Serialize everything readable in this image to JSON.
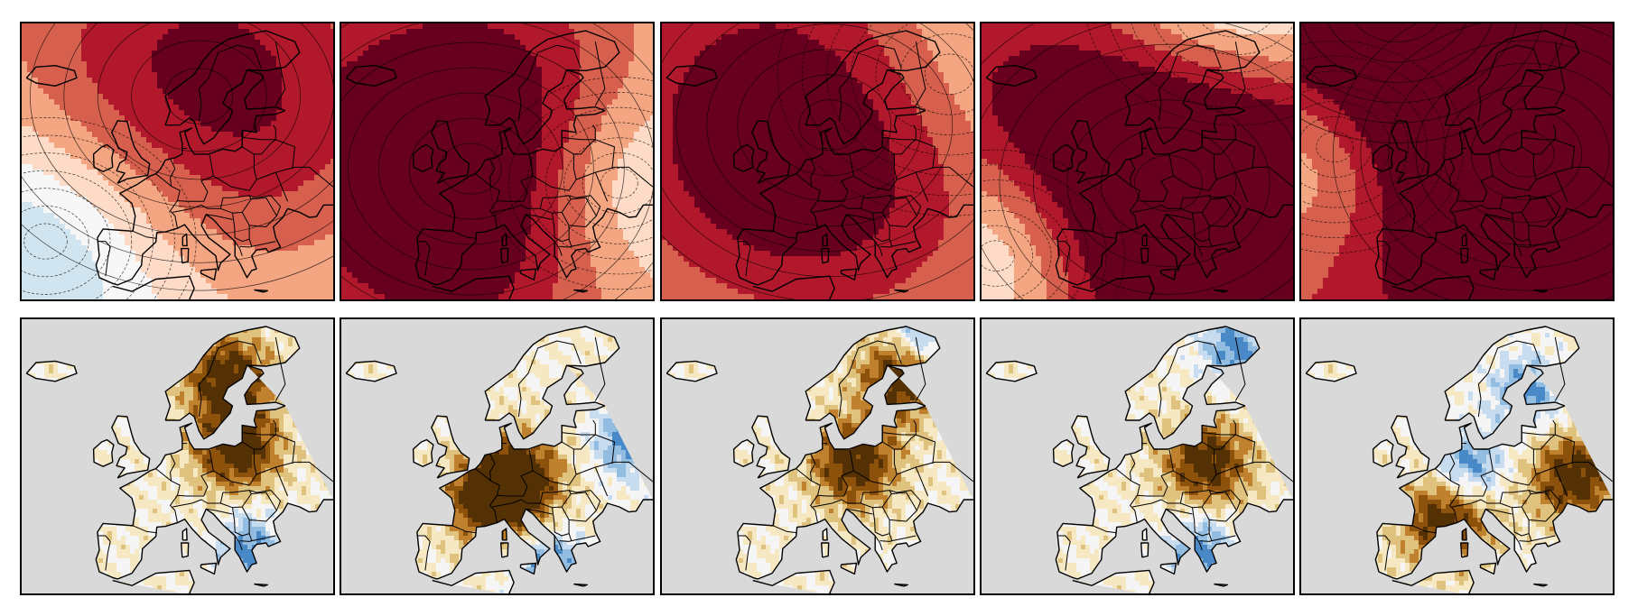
{
  "figure": {
    "rows": [
      {
        "row_id": "anomaly-contours",
        "style": "diverging",
        "panels": [
          {
            "index": 1,
            "centers": [
              {
                "lon": 12,
                "lat": 62,
                "amp": 0.75,
                "r": 0.55
              }
            ],
            "bias": -0.05,
            "neg_centers": [
              {
                "lon": -20,
                "lat": 42,
                "amp": -0.5,
                "r": 0.35
              }
            ]
          },
          {
            "index": 2,
            "centers": [
              {
                "lon": 2,
                "lat": 52,
                "amp": 1.0,
                "r": 0.5
              }
            ],
            "bias": 0.05,
            "neg_centers": [
              {
                "lon": 33,
                "lat": 50,
                "amp": -0.55,
                "r": 0.3
              }
            ]
          },
          {
            "index": 3,
            "centers": [
              {
                "lon": 10,
                "lat": 58,
                "amp": 0.9,
                "r": 0.5
              }
            ],
            "bias": 0.1,
            "neg_centers": [
              {
                "lon": 35,
                "lat": 65,
                "amp": -0.45,
                "r": 0.4
              }
            ]
          },
          {
            "index": 4,
            "centers": [
              {
                "lon": 14,
                "lat": 50,
                "amp": 1.1,
                "r": 0.55
              }
            ],
            "bias": 0.2,
            "neg_centers": [
              {
                "lon": -22,
                "lat": 40,
                "amp": -0.7,
                "r": 0.3
              },
              {
                "lon": 28,
                "lat": 75,
                "amp": -0.7,
                "r": 0.35
              }
            ]
          },
          {
            "index": 5,
            "centers": [
              {
                "lon": 22,
                "lat": 54,
                "amp": 0.9,
                "r": 0.45
              },
              {
                "lon": -5,
                "lat": 75,
                "amp": 0.7,
                "r": 0.4
              }
            ],
            "bias": 0.4,
            "neg_centers": [
              {
                "lon": -18,
                "lat": 55,
                "amp": -0.6,
                "r": 0.3
              }
            ]
          }
        ]
      },
      {
        "row_id": "precipitation-anomaly",
        "style": "brown-blue",
        "panels": [
          {
            "index": 1,
            "dry_centers": [
              {
                "lon": 20,
                "lat": 54
              },
              {
                "lon": 18,
                "lat": 64
              }
            ],
            "wet_centers": [
              {
                "lon": 22,
                "lat": 40
              }
            ]
          },
          {
            "index": 2,
            "dry_centers": [
              {
                "lon": 6,
                "lat": 47
              },
              {
                "lon": 12,
                "lat": 50
              }
            ],
            "wet_centers": [
              {
                "lon": 35,
                "lat": 55
              },
              {
                "lon": 18,
                "lat": 38
              }
            ]
          },
          {
            "index": 3,
            "dry_centers": [
              {
                "lon": 15,
                "lat": 52
              },
              {
                "lon": 25,
                "lat": 64
              }
            ],
            "wet_centers": [
              {
                "lon": 30,
                "lat": 70
              }
            ]
          },
          {
            "index": 4,
            "dry_centers": [
              {
                "lon": 22,
                "lat": 52
              }
            ],
            "wet_centers": [
              {
                "lon": 28,
                "lat": 68
              },
              {
                "lon": 20,
                "lat": 40
              }
            ]
          },
          {
            "index": 5,
            "dry_centers": [
              {
                "lon": 32,
                "lat": 50
              },
              {
                "lon": 5,
                "lat": 44
              }
            ],
            "wet_centers": [
              {
                "lon": 22,
                "lat": 62
              },
              {
                "lon": 10,
                "lat": 52
              }
            ]
          }
        ]
      }
    ],
    "map_extent": {
      "lon_min": -25,
      "lon_max": 40,
      "lat_min": 34,
      "lat_max": 72
    },
    "colors": {
      "diverging": [
        "#2166ac",
        "#4393c3",
        "#92c5de",
        "#d1e5f0",
        "#f7f7f7",
        "#fddbc7",
        "#f4a582",
        "#d6604d",
        "#b2182b",
        "#67001f"
      ],
      "brownblue": [
        "#543005",
        "#8c510a",
        "#bf812d",
        "#dfc27d",
        "#f6e8c3",
        "#f5f5f5",
        "#c7dcef",
        "#92bce0",
        "#4a89c8"
      ],
      "ocean_gray": "#d9d9d9",
      "coast": "#000000"
    }
  }
}
